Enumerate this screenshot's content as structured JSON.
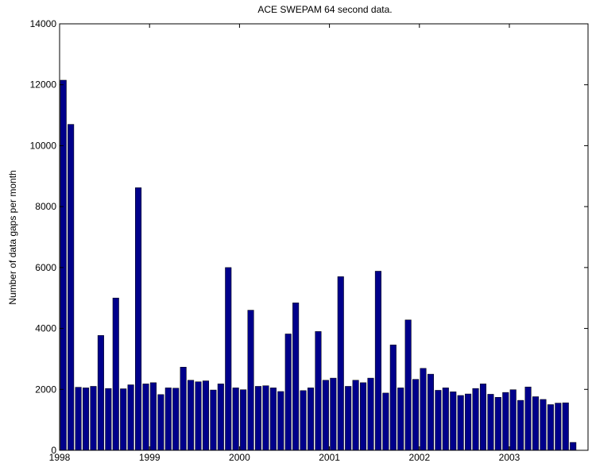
{
  "chart_data": {
    "type": "bar",
    "title": "ACE SWEPAM 64 second data.",
    "xlabel": "",
    "ylabel": "Number of data gaps per month",
    "x_axis": {
      "type": "date",
      "range": [
        "1998-01",
        "2003-12"
      ],
      "tick_labels": [
        "1998",
        "1999",
        "2000",
        "2001",
        "2002",
        "2003"
      ]
    },
    "y_axis": {
      "range": [
        0,
        14000
      ],
      "ticks": [
        0,
        2000,
        4000,
        6000,
        8000,
        10000,
        12000,
        14000
      ],
      "tick_labels": [
        "0",
        "2000",
        "4000",
        "6000",
        "8000",
        "10000",
        "12000",
        "14000"
      ]
    },
    "grid": false,
    "legend": "none",
    "bar_color": "#00008b",
    "x": [
      "1998-01",
      "1998-02",
      "1998-03",
      "1998-04",
      "1998-05",
      "1998-06",
      "1998-07",
      "1998-08",
      "1998-09",
      "1998-10",
      "1998-11",
      "1998-12",
      "1999-01",
      "1999-02",
      "1999-03",
      "1999-04",
      "1999-05",
      "1999-06",
      "1999-07",
      "1999-08",
      "1999-09",
      "1999-10",
      "1999-11",
      "1999-12",
      "2000-01",
      "2000-02",
      "2000-03",
      "2000-04",
      "2000-05",
      "2000-06",
      "2000-07",
      "2000-08",
      "2000-09",
      "2000-10",
      "2000-11",
      "2000-12",
      "2001-01",
      "2001-02",
      "2001-03",
      "2001-04",
      "2001-05",
      "2001-06",
      "2001-07",
      "2001-08",
      "2001-09",
      "2001-10",
      "2001-11",
      "2001-12",
      "2002-01",
      "2002-02",
      "2002-03",
      "2002-04",
      "2002-05",
      "2002-06",
      "2002-07",
      "2002-08",
      "2002-09",
      "2002-10",
      "2002-11",
      "2002-12",
      "2003-01",
      "2003-02",
      "2003-03",
      "2003-04",
      "2003-05",
      "2003-06",
      "2003-07",
      "2003-08",
      "2003-09"
    ],
    "values": [
      12150,
      10700,
      2070,
      2050,
      2100,
      3770,
      2030,
      5000,
      2020,
      2150,
      8620,
      2180,
      2220,
      1830,
      2050,
      2040,
      2730,
      2300,
      2250,
      2280,
      1980,
      2180,
      6000,
      2050,
      1990,
      4600,
      2100,
      2120,
      2050,
      1930,
      3820,
      4840,
      1960,
      2050,
      3900,
      2300,
      2370,
      5700,
      2100,
      2300,
      2220,
      2370,
      5880,
      1880,
      3460,
      2050,
      4280,
      2330,
      2690,
      2500,
      1970,
      2050,
      1920,
      1800,
      1850,
      2030,
      2180,
      1840,
      1740,
      1900,
      1990,
      1640,
      2080,
      1760,
      1670,
      1500,
      1550,
      1560,
      260
    ]
  }
}
